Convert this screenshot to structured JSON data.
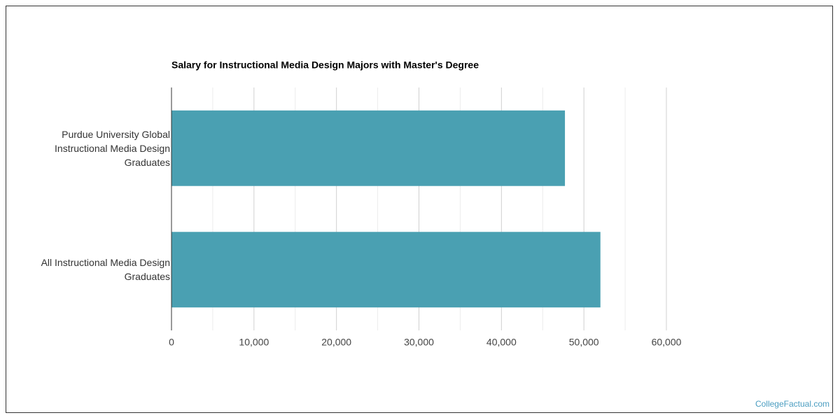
{
  "chart_data": {
    "type": "bar",
    "orientation": "horizontal",
    "title": "Salary for Instructional Media Design Majors with Master's Degree",
    "categories": [
      "Purdue University Global Instructional Media Design Graduates",
      "All Instructional Media Design Graduates"
    ],
    "values": [
      47700,
      52000
    ],
    "color": "#4aa0b2",
    "xlim": [
      0,
      60000
    ],
    "xticks": [
      0,
      {
        "value": 10000,
        "label": "10,000"
      },
      {
        "value": 20000,
        "label": "20,000"
      },
      {
        "value": 30000,
        "label": "30,000"
      },
      {
        "value": 40000,
        "label": "40,000"
      },
      {
        "value": 50000,
        "label": "50,000"
      },
      {
        "value": 60000,
        "label": "60,000"
      }
    ],
    "minor_xticks": [
      5000,
      15000,
      25000,
      35000,
      45000,
      55000
    ],
    "grid": true
  },
  "footer": {
    "link": "CollegeFactual.com"
  }
}
